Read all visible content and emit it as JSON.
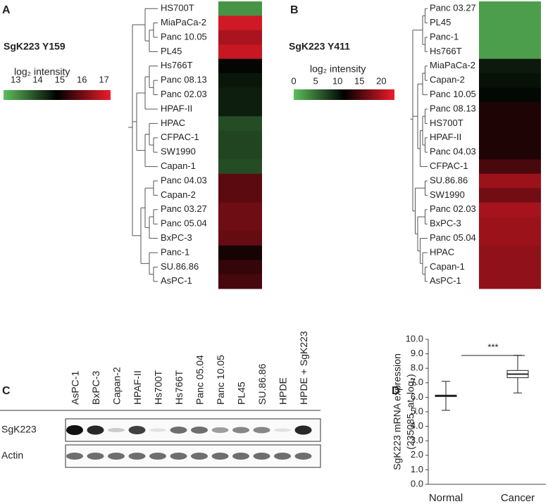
{
  "chart_data": [
    {
      "type": "heatmap",
      "panel": "A",
      "title": "SgK223 Y159",
      "colorbar_label": "log₂ intensity",
      "categories": [
        "HS700T",
        "MiaPaCa-2",
        "Panc 10.05",
        "PL45",
        "Hs766T",
        "Panc 08.13",
        "Panc 02.03",
        "HPAF-II",
        "HPAC",
        "CFPAC-1",
        "SW1990",
        "Capan-1",
        "Panc 04.03",
        "Capan-2",
        "Panc 03.27",
        "Panc 05.04",
        "BxPC-3",
        "Panc-1",
        "SU.86.86",
        "AsPC-1"
      ],
      "values": [
        13.0,
        17.0,
        16.6,
        16.9,
        14.8,
        14.6,
        14.5,
        14.5,
        13.9,
        14.0,
        14.0,
        13.9,
        15.8,
        15.8,
        16.0,
        16.0,
        15.9,
        15.1,
        15.4,
        15.6
      ],
      "clim": [
        12.45,
        17.3
      ],
      "cticks": [
        13,
        14,
        15,
        16,
        17
      ],
      "colormap": [
        "#5cbf5c",
        "#000000",
        "#ee1c2a"
      ]
    },
    {
      "type": "heatmap",
      "panel": "B",
      "title": "SgK223 Y411",
      "colorbar_label": "log₂ intensity",
      "categories": [
        "Panc 03.27",
        "PL45",
        "Panc-1",
        "Hs766T",
        "MiaPaCa-2",
        "Capan-2",
        "Panc 10.05",
        "Panc 08.13",
        "HS700T",
        "HPAF-II",
        "Panc 04.03",
        "CFPAC-1",
        "SU.86.86",
        "SW1990",
        "Panc 02.03",
        "BxPC-3",
        "Panc 05.04",
        "HPAC",
        "Capan-1",
        "AsPC-1"
      ],
      "values": [
        2,
        2,
        2,
        2,
        10,
        10.5,
        11,
        13,
        13,
        13,
        13,
        15,
        19,
        17,
        19.5,
        19,
        19,
        18.5,
        18.5,
        18.5
      ],
      "clim": [
        0,
        23
      ],
      "cticks": [
        0,
        5,
        10,
        15,
        20
      ],
      "colormap": [
        "#5cbf5c",
        "#000000",
        "#ee1c2a"
      ]
    },
    {
      "type": "blot",
      "panel": "C",
      "lanes": [
        "AsPC-1",
        "BxPC-3",
        "Capan-2",
        "HPAF-II",
        "Hs700T",
        "Hs766T",
        "Panc 05.04",
        "Panc 10.05",
        "PL45",
        "SU.86.86",
        "HPDE",
        "HPDE + SgK223"
      ],
      "rows": [
        {
          "name": "SgK223",
          "values": [
            1.0,
            0.9,
            0.2,
            0.8,
            0.1,
            0.6,
            0.6,
            0.4,
            0.5,
            0.5,
            0.1,
            0.9
          ]
        },
        {
          "name": "Actin",
          "values": [
            0.6,
            0.6,
            0.6,
            0.6,
            0.6,
            0.6,
            0.6,
            0.6,
            0.6,
            0.6,
            0.6,
            0.6
          ]
        }
      ]
    },
    {
      "type": "box",
      "panel": "D",
      "y_label": [
        "SgK223 mRNA expression",
        "(235085_at, log₂)"
      ],
      "annotation": "***",
      "categories": [
        "Normal",
        "Cancer"
      ],
      "boxes": [
        {
          "low": 5.1,
          "q1": 6.05,
          "median": 6.1,
          "q3": 6.15,
          "high": 7.1
        },
        {
          "low": 6.3,
          "q1": 7.35,
          "median": 7.6,
          "q3": 7.85,
          "high": 8.9
        }
      ],
      "ylim": [
        0,
        10
      ],
      "yticks": [
        {
          "value": 0,
          "label": "0.0"
        },
        {
          "value": 1,
          "label": "1.0"
        },
        {
          "value": 2,
          "label": "2.0"
        },
        {
          "value": 3,
          "label": "3.0"
        },
        {
          "value": 4,
          "label": "4.0"
        },
        {
          "value": 5,
          "label": "5.0"
        },
        {
          "value": 6,
          "label": "6.0"
        },
        {
          "value": 7,
          "label": "7.0"
        },
        {
          "value": 8,
          "label": "8.0"
        },
        {
          "value": 9,
          "label": "9.0"
        },
        {
          "value": 10,
          "label": "10.0"
        }
      ]
    }
  ]
}
